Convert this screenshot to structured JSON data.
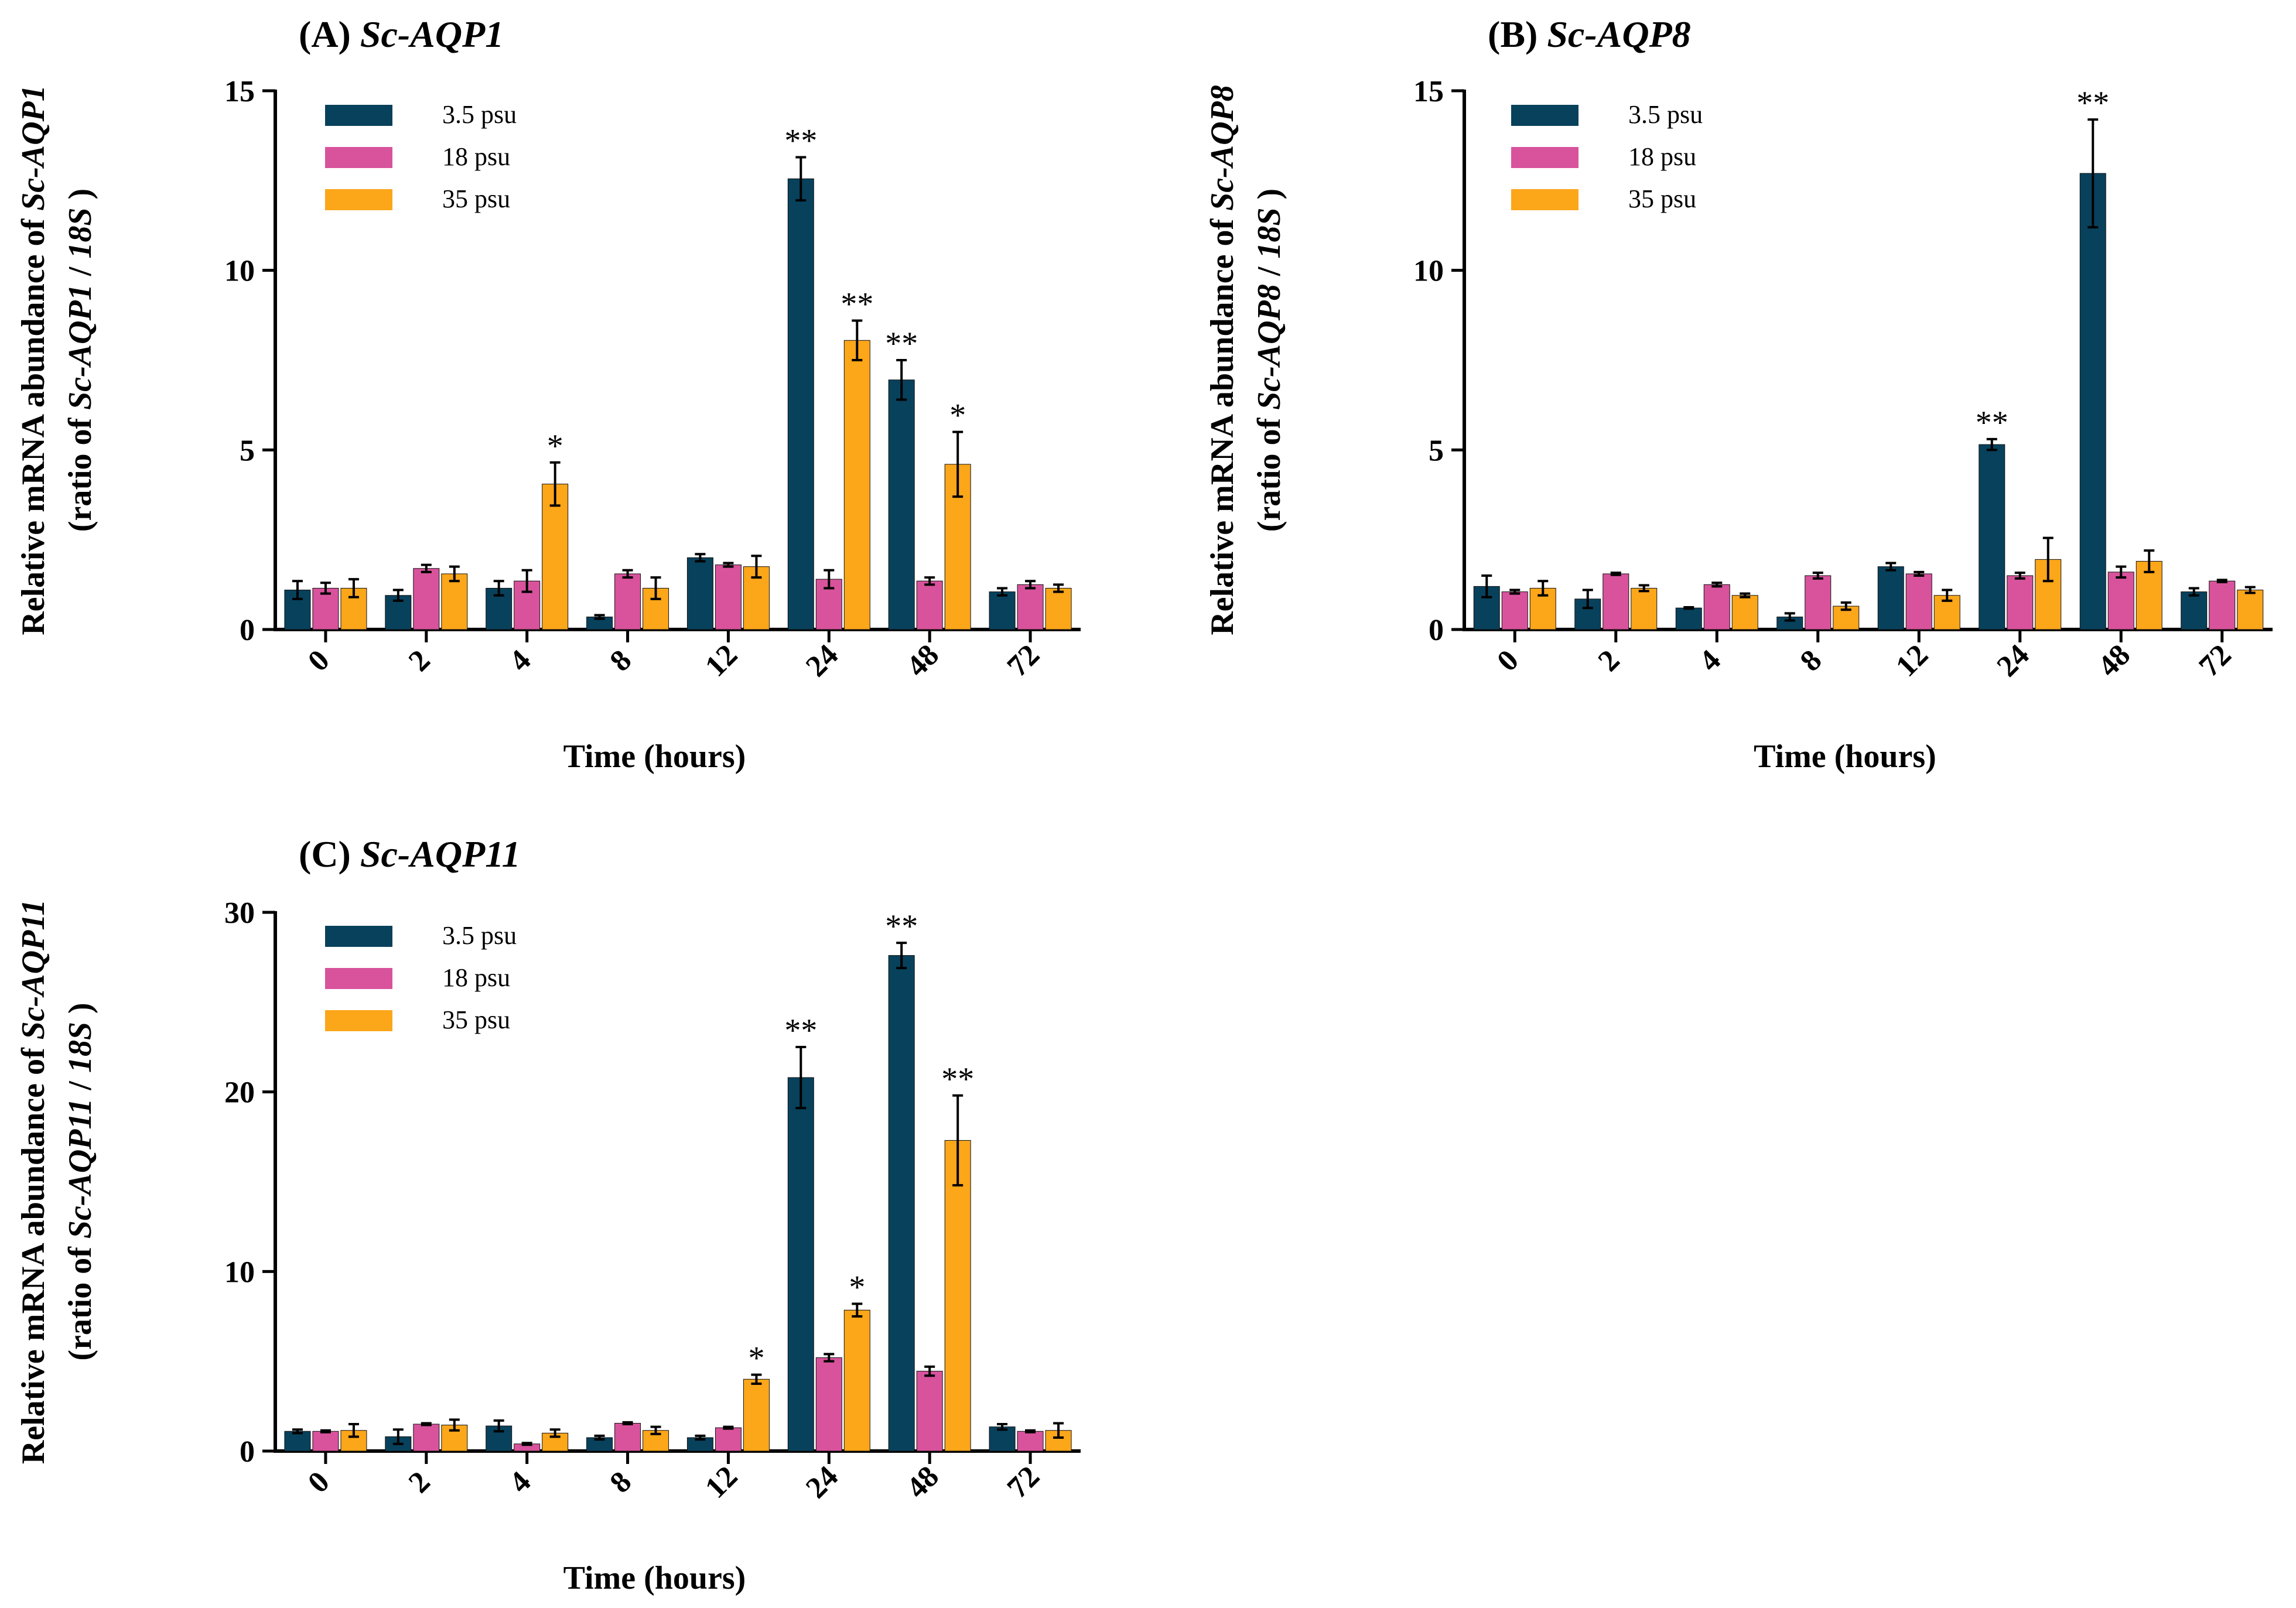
{
  "colors": {
    "s35": "#08415c",
    "s18": "#d8539c",
    "s350": "#fca61a",
    "err": "#000000"
  },
  "chart_data": [
    {
      "type": "bar",
      "panel_label": "(A)",
      "gene": "Sc-AQP1",
      "title": "(A) Sc-AQP1",
      "xlabel": "Time (hours)",
      "ylabel_line1": "Relative mRNA abundance of Sc-AQP1",
      "ylabel_line2": "(ratio of Sc-AQP1 / 18S )",
      "ylim": [
        0,
        15
      ],
      "yticks": [
        "0",
        "5",
        "10",
        "15"
      ],
      "categories": [
        "0",
        "2",
        "4",
        "8",
        "12",
        "24",
        "48",
        "72"
      ],
      "series": [
        {
          "name": "3.5 psu",
          "values": [
            1.1,
            0.95,
            1.15,
            0.35,
            2.0,
            12.55,
            6.95,
            1.05
          ],
          "errors": [
            0.25,
            0.15,
            0.2,
            0.05,
            0.1,
            0.6,
            0.55,
            0.1
          ],
          "sig": [
            "",
            "",
            "",
            "",
            "",
            "**",
            "**",
            ""
          ]
        },
        {
          "name": "18  psu",
          "values": [
            1.15,
            1.7,
            1.35,
            1.55,
            1.8,
            1.4,
            1.35,
            1.25
          ],
          "errors": [
            0.15,
            0.1,
            0.3,
            0.1,
            0.05,
            0.25,
            0.1,
            0.1
          ],
          "sig": [
            "",
            "",
            "",
            "",
            "",
            "",
            "",
            ""
          ]
        },
        {
          "name": "35  psu",
          "values": [
            1.15,
            1.55,
            4.05,
            1.15,
            1.75,
            8.05,
            4.6,
            1.15
          ],
          "errors": [
            0.25,
            0.2,
            0.6,
            0.3,
            0.3,
            0.55,
            0.9,
            0.1
          ],
          "sig": [
            "",
            "",
            "*",
            "",
            "",
            "**",
            "*",
            ""
          ]
        }
      ]
    },
    {
      "type": "bar",
      "panel_label": "(B)",
      "gene": "Sc-AQP8",
      "title": "(B) Sc-AQP8",
      "xlabel": "Time (hours)",
      "ylabel_line1": "Relative mRNA abundance of Sc-AQP8",
      "ylabel_line2": "(ratio of Sc-AQP8 / 18S )",
      "ylim": [
        0,
        15
      ],
      "yticks": [
        "0",
        "5",
        "10",
        "15"
      ],
      "categories": [
        "0",
        "2",
        "4",
        "8",
        "12",
        "24",
        "48",
        "72"
      ],
      "series": [
        {
          "name": "3.5 psu",
          "values": [
            1.2,
            0.85,
            0.6,
            0.35,
            1.75,
            5.15,
            12.7,
            1.05
          ],
          "errors": [
            0.3,
            0.25,
            0.02,
            0.1,
            0.1,
            0.15,
            1.5,
            0.1
          ],
          "sig": [
            "",
            "",
            "",
            "",
            "",
            "**",
            "**",
            ""
          ]
        },
        {
          "name": "18  psu",
          "values": [
            1.05,
            1.55,
            1.25,
            1.5,
            1.55,
            1.5,
            1.6,
            1.35
          ],
          "errors": [
            0.05,
            0.03,
            0.05,
            0.08,
            0.05,
            0.08,
            0.15,
            0.03
          ],
          "sig": [
            "",
            "",
            "",
            "",
            "",
            "",
            "",
            ""
          ]
        },
        {
          "name": "35  psu",
          "values": [
            1.15,
            1.15,
            0.95,
            0.65,
            0.95,
            1.95,
            1.9,
            1.1
          ],
          "errors": [
            0.2,
            0.08,
            0.05,
            0.1,
            0.15,
            0.6,
            0.3,
            0.08
          ],
          "sig": [
            "",
            "",
            "",
            "",
            "",
            "",
            "",
            ""
          ]
        }
      ]
    },
    {
      "type": "bar",
      "panel_label": "(C)",
      "gene": "Sc-AQP11",
      "title": "(C) Sc-AQP11",
      "xlabel": "Time (hours)",
      "ylabel_line1": "Relative mRNA abundance of Sc-AQP11",
      "ylabel_line2": "(ratio of Sc-AQP11 / 18S )",
      "ylim": [
        0,
        30
      ],
      "yticks": [
        "0",
        "10",
        "20",
        "30"
      ],
      "categories": [
        "0",
        "2",
        "4",
        "8",
        "12",
        "24",
        "48",
        "72"
      ],
      "series": [
        {
          "name": "3.5 psu",
          "values": [
            1.1,
            0.8,
            1.4,
            0.75,
            0.75,
            20.8,
            27.6,
            1.35
          ],
          "errors": [
            0.1,
            0.4,
            0.3,
            0.1,
            0.1,
            1.7,
            0.7,
            0.15
          ],
          "sig": [
            "",
            "",
            "",
            "",
            "",
            "**",
            "**",
            ""
          ]
        },
        {
          "name": "18  psu",
          "values": [
            1.1,
            1.5,
            0.4,
            1.55,
            1.3,
            5.2,
            4.45,
            1.1
          ],
          "errors": [
            0.05,
            0.05,
            0.05,
            0.05,
            0.05,
            0.2,
            0.25,
            0.05
          ],
          "sig": [
            "",
            "",
            "",
            "",
            "",
            "",
            "",
            ""
          ]
        },
        {
          "name": "35  psu",
          "values": [
            1.15,
            1.45,
            1.0,
            1.15,
            4.0,
            7.85,
            17.3,
            1.15
          ],
          "errors": [
            0.35,
            0.3,
            0.2,
            0.2,
            0.25,
            0.35,
            2.5,
            0.4
          ],
          "sig": [
            "",
            "",
            "",
            "",
            "*",
            "*",
            "**",
            ""
          ]
        }
      ]
    }
  ]
}
